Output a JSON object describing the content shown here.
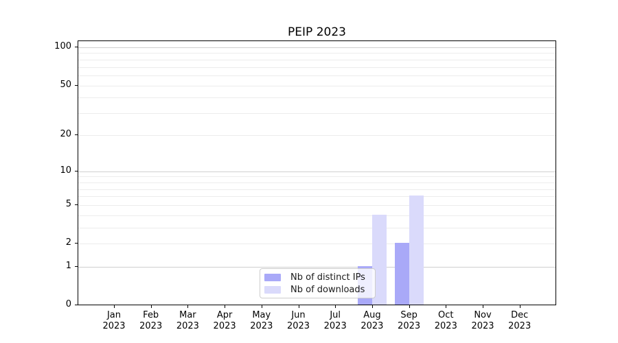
{
  "chart_data": {
    "type": "bar",
    "title": "PEIP 2023",
    "categories": [
      "Jan",
      "Feb",
      "Mar",
      "Apr",
      "May",
      "Jun",
      "Jul",
      "Aug",
      "Sep",
      "Oct",
      "Nov",
      "Dec"
    ],
    "year_label": "2023",
    "series": [
      {
        "name": "Nb of distinct IPs",
        "color": "#a9a9f8",
        "values": [
          0,
          0,
          0,
          0,
          0,
          0,
          0,
          1,
          2,
          0,
          0,
          0
        ]
      },
      {
        "name": "Nb of downloads",
        "color": "#dadafb",
        "values": [
          0,
          0,
          0,
          0,
          0,
          0,
          0,
          4,
          6,
          0,
          0,
          0
        ]
      }
    ],
    "y_axis": {
      "scale": "log1p",
      "tick_values": [
        0,
        1,
        2,
        5,
        10,
        20,
        50,
        100
      ],
      "major_gridlines": [
        1,
        10,
        100
      ],
      "minor_gridlines": [
        2,
        3,
        4,
        5,
        6,
        7,
        8,
        9,
        20,
        30,
        40,
        50,
        60,
        70,
        80,
        90
      ],
      "ylim": [
        0,
        115
      ]
    },
    "xlabel": "",
    "ylabel": "",
    "grid": true,
    "legend_position": "lower center"
  },
  "colors": {
    "axis": "#000000",
    "major_grid": "#cfcfcf",
    "minor_grid": "#ececec",
    "legend_border": "#cccccc",
    "text": "#000000"
  }
}
